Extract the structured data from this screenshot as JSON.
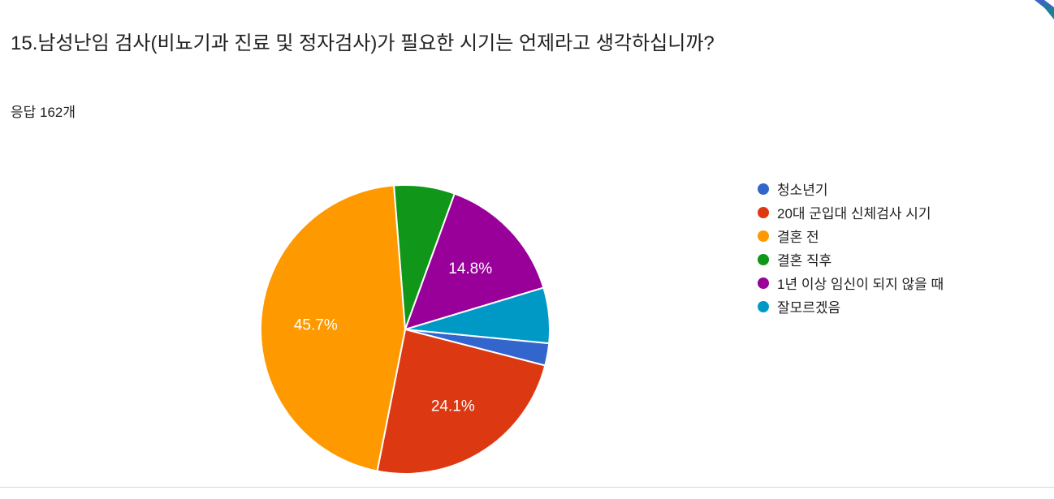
{
  "page": {
    "title": "15.남성난임 검사(비뇨기과 진료 및 정자검사)가 필요한 시기는 언제라고 생각하십니까?",
    "responses_label": "응답 162개"
  },
  "chart_data": {
    "type": "pie",
    "title": "15.남성난임 검사(비뇨기과 진료 및 정자검사)가 필요한 시기는 언제라고 생각하십니까?",
    "total_responses": 162,
    "legend_position": "right",
    "start_angle_deg": 95.5,
    "categories": [
      "청소년기",
      "20대 군입대 신체검사 시기",
      "결혼 전",
      "결혼 직후",
      "1년 이상 임신이 되지 않을 때",
      "잘모르겠음"
    ],
    "values_percent": [
      2.5,
      24.1,
      45.7,
      6.8,
      14.8,
      6.2
    ],
    "slice_labels": [
      "",
      "24.1%",
      "45.7%",
      "",
      "14.8%",
      ""
    ],
    "colors": [
      "#3366CC",
      "#DC3912",
      "#FF9900",
      "#109618",
      "#990099",
      "#0099C6"
    ]
  }
}
